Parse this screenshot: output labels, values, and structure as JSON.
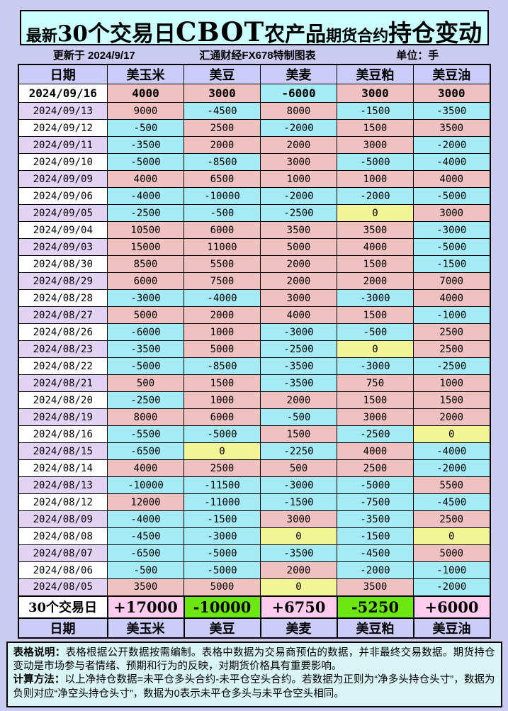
{
  "title": {
    "full": "最新30个交易日CBOT农产品期货合约持仓变动",
    "segments": [
      "最新",
      "30个交易日",
      "CBOT",
      "农产品",
      "期货合约",
      "持仓变动"
    ]
  },
  "subtitle": {
    "updated": "更新于 2024/9/17",
    "source": "汇通财经FX678特制图表",
    "unit": "单位：手"
  },
  "colors": {
    "page_bg": "#CBCBF2",
    "title_bg": "#CCFFFF",
    "header_bg": "#CCCCFA",
    "date_alt_bg": "#E2D3F4",
    "positive_bg": "#F0C1C1",
    "negative_bg": "#A5EBF5",
    "zero_bg": "#F1F598",
    "summary_positive_bg": "#FFCCEE",
    "summary_negative_bg": "#6CE712",
    "notes_bg": "#D8F4F4"
  },
  "chart_data": {
    "type": "table",
    "title": "最新30个交易日CBOT农产品期货合约持仓变动",
    "unit": "手",
    "updated": "2024/9/17",
    "columns": [
      "日期",
      "美玉米",
      "美豆",
      "美麦",
      "美豆粕",
      "美豆油"
    ],
    "rows": [
      {
        "date": "2024/09/16",
        "values": [
          4000,
          3000,
          -6000,
          3000,
          3000
        ]
      },
      {
        "date": "2024/09/13",
        "values": [
          9000,
          -4500,
          8000,
          -1500,
          -3500
        ]
      },
      {
        "date": "2024/09/12",
        "values": [
          -500,
          2500,
          -2000,
          1500,
          3500
        ]
      },
      {
        "date": "2024/09/11",
        "values": [
          -3500,
          2000,
          2000,
          3000,
          -2000
        ]
      },
      {
        "date": "2024/09/10",
        "values": [
          -5000,
          -8500,
          3000,
          -5000,
          -4000
        ]
      },
      {
        "date": "2024/09/09",
        "values": [
          4000,
          6500,
          1000,
          1000,
          4000
        ]
      },
      {
        "date": "2024/09/06",
        "values": [
          -4000,
          -10000,
          -2000,
          -2000,
          -5000
        ]
      },
      {
        "date": "2024/09/05",
        "values": [
          -2500,
          -500,
          -2500,
          0,
          3000
        ]
      },
      {
        "date": "2024/09/04",
        "values": [
          10500,
          6000,
          3500,
          3500,
          -3000
        ]
      },
      {
        "date": "2024/09/03",
        "values": [
          15000,
          11000,
          5000,
          4000,
          -5000
        ]
      },
      {
        "date": "2024/08/30",
        "values": [
          8500,
          5500,
          2000,
          1500,
          -1500
        ]
      },
      {
        "date": "2024/08/29",
        "values": [
          6000,
          7500,
          2000,
          2000,
          7000
        ]
      },
      {
        "date": "2024/08/28",
        "values": [
          -3000,
          -4000,
          3000,
          -3000,
          4000
        ]
      },
      {
        "date": "2024/08/27",
        "values": [
          5000,
          2000,
          4000,
          1500,
          -1000
        ]
      },
      {
        "date": "2024/08/26",
        "values": [
          -6000,
          1000,
          -3000,
          -500,
          2500
        ]
      },
      {
        "date": "2024/08/23",
        "values": [
          -3500,
          5000,
          -2500,
          0,
          2500
        ]
      },
      {
        "date": "2024/08/22",
        "values": [
          -5000,
          -8500,
          -3500,
          -3000,
          -2500
        ]
      },
      {
        "date": "2024/08/21",
        "values": [
          500,
          1500,
          -3500,
          750,
          1000
        ]
      },
      {
        "date": "2024/08/20",
        "values": [
          -2500,
          1000,
          2000,
          1500,
          1500
        ]
      },
      {
        "date": "2024/08/19",
        "values": [
          8000,
          6000,
          -500,
          3000,
          2000
        ]
      },
      {
        "date": "2024/08/16",
        "values": [
          -5500,
          -5000,
          1500,
          -2500,
          0
        ]
      },
      {
        "date": "2024/08/15",
        "values": [
          -6500,
          0,
          -2250,
          4000,
          -4000
        ]
      },
      {
        "date": "2024/08/14",
        "values": [
          4000,
          2500,
          500,
          2500,
          -2000
        ]
      },
      {
        "date": "2024/08/13",
        "values": [
          -10000,
          -11500,
          -3000,
          -5000,
          5500
        ]
      },
      {
        "date": "2024/08/12",
        "values": [
          12000,
          -11000,
          -1500,
          -7500,
          -4500
        ]
      },
      {
        "date": "2024/08/09",
        "values": [
          -4000,
          -1500,
          3000,
          -3500,
          2500
        ]
      },
      {
        "date": "2024/08/08",
        "values": [
          -4500,
          -3000,
          0,
          -1500,
          0
        ]
      },
      {
        "date": "2024/08/07",
        "values": [
          -6500,
          -5000,
          -3500,
          -4500,
          5000
        ]
      },
      {
        "date": "2024/08/06",
        "values": [
          -500,
          -5000,
          2000,
          -2000,
          -1000
        ]
      },
      {
        "date": "2024/08/05",
        "values": [
          3500,
          5000,
          0,
          3500,
          -2000
        ]
      }
    ],
    "summary": {
      "label": "30个交易日",
      "values": [
        17000,
        -10000,
        6750,
        -5250,
        6000
      ],
      "values_display": [
        "+17000",
        "-10000",
        "+6750",
        "-5250",
        "+6000"
      ]
    },
    "legend": {
      "positive_cells": "pink",
      "negative_cells": "cyan",
      "zero_cells": "yellow"
    }
  },
  "notes": {
    "p1_label": "表格说明：",
    "p1": "表格根据公开数据按需编制。表格中数据为交易商预估的数据，并非最终交易数据。期货持仓变动是市场参与者情绪、预期和行为的反映，对期货价格具有重要影响。",
    "p2_label": "计算方法：",
    "p2": "以上净持仓数据=未平仓多头合约-未平仓空头合约。若数据为正则为“净多头持仓头寸”，数据为负则对应“净空头持仓头寸”，数据为0表示未平仓多头与未平仓空头相同。"
  }
}
